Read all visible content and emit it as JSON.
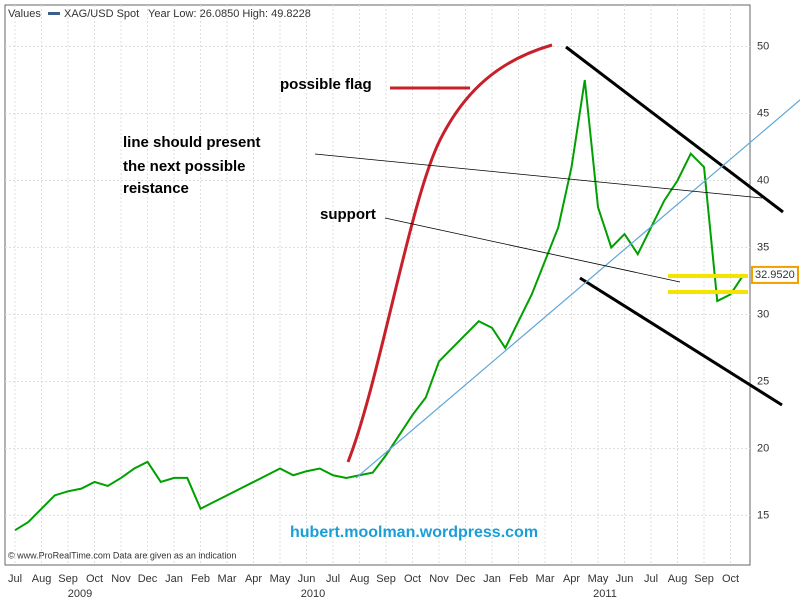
{
  "chart_data": {
    "type": "line",
    "header": [
      "Values",
      "XAG/USD Spot",
      "Year Low: 26.0850 High: 49.8228"
    ],
    "footer": "© www.ProRealTime.com Data are given as an indication",
    "watermark": "hubert.moolman.wordpress.com",
    "annotations": {
      "flag": "possible flag",
      "resistance": [
        "line should present",
        "the next possible",
        "reistance"
      ],
      "support": "support"
    },
    "categories": [
      "Jul",
      null,
      "Aug",
      null,
      "Sep",
      null,
      "Oct",
      null,
      "Nov",
      null,
      "Dec",
      null,
      "Jan",
      null,
      "Feb",
      null,
      "Mar",
      null,
      "Apr",
      null,
      "May",
      null,
      "Jun",
      null,
      "Jul",
      null,
      "Aug",
      null,
      "Sep",
      null,
      "Oct",
      null,
      "Nov",
      null,
      "Dec",
      null,
      "Jan",
      null,
      "Feb",
      null,
      "Mar",
      null,
      "Apr",
      null,
      "May",
      null,
      "Jun",
      null,
      "Jul",
      null,
      "Aug",
      null,
      "Sep",
      null,
      "Oct",
      null
    ],
    "years": [
      "2009",
      "2010",
      "2011"
    ],
    "series": [
      {
        "name": "XAG/USD Spot",
        "color": "#00a000",
        "values": [
          13.9,
          14.5,
          15.5,
          16.5,
          16.8,
          17,
          17.5,
          17.2,
          17.8,
          18.5,
          19,
          17.5,
          17.8,
          17.8,
          15.5,
          16,
          16.5,
          17,
          17.5,
          18,
          18.5,
          18,
          18.3,
          18.5,
          18,
          17.8,
          18,
          18.2,
          19.5,
          21,
          22.5,
          23.8,
          26.5,
          27.5,
          28.5,
          29.5,
          29,
          27.5,
          29.5,
          31.5,
          34,
          36.5,
          41,
          47.5,
          38,
          35,
          36,
          34.5,
          36.5,
          38.5,
          40,
          42,
          41,
          31,
          31.5,
          33
        ]
      }
    ],
    "last_value": 32.952,
    "last_value_label": "32.9520",
    "ylim": [
      11.3,
      53.1
    ],
    "yticks": [
      15,
      20,
      25,
      30,
      35,
      40,
      45,
      50
    ],
    "grid": true
  }
}
